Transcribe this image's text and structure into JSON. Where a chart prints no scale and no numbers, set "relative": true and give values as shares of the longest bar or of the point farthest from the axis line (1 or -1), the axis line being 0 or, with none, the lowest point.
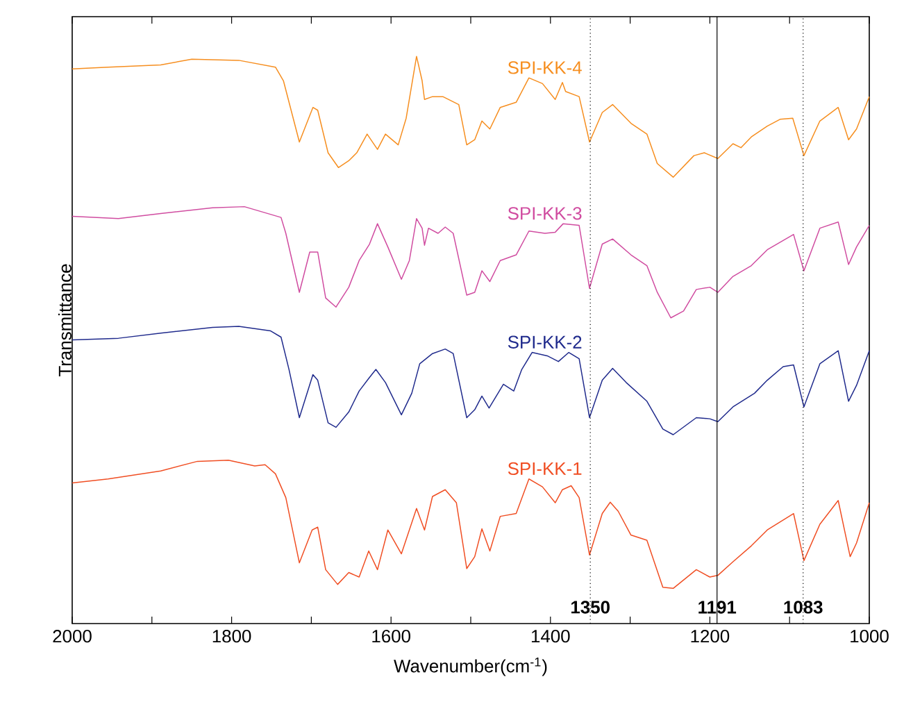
{
  "chart_data": {
    "type": "line",
    "relative": true,
    "xlabel": "Wavenumber(cm$^{-1}$)",
    "ylabel": "Transmittance",
    "tick_labels": "x",
    "xlim": [
      2000,
      1000
    ],
    "xticks": [
      2000,
      {
        "value": 1900,
        "label": null
      },
      1800,
      {
        "value": 1700,
        "label": null
      },
      1600,
      {
        "value": 1500,
        "label": null
      },
      1400,
      {
        "value": 1300,
        "label": null
      },
      1200,
      {
        "value": 1100,
        "label": null
      },
      1000
    ],
    "ref_lines": [
      {
        "axis": "x",
        "value": 1350,
        "label": "1350",
        "line_style": "dotted"
      },
      {
        "axis": "x",
        "value": 1191,
        "label": "1191",
        "line_style": "solid"
      },
      {
        "axis": "x",
        "value": 1083,
        "label": "1083",
        "line_style": "dotted"
      }
    ],
    "series": [
      {
        "name": "SPI-KK-4",
        "color": "#f68e1f",
        "x": [
          2000,
          1955,
          1889,
          1850,
          1791,
          1745,
          1735,
          1715,
          1698,
          1692,
          1679,
          1666,
          1653,
          1643,
          1630,
          1617,
          1607,
          1591,
          1581,
          1568,
          1561,
          1558,
          1548,
          1535,
          1515,
          1505,
          1495,
          1486,
          1476,
          1463,
          1443,
          1427,
          1410,
          1394,
          1385,
          1381,
          1364,
          1351,
          1335,
          1322,
          1299,
          1279,
          1266,
          1246,
          1220,
          1207,
          1190,
          1171,
          1161,
          1148,
          1128,
          1112,
          1096,
          1082,
          1062,
          1039,
          1026,
          1016,
          1000
        ],
        "values": [
          0.978,
          0.981,
          0.985,
          0.995,
          0.993,
          0.981,
          0.957,
          0.849,
          0.91,
          0.905,
          0.83,
          0.804,
          0.816,
          0.83,
          0.863,
          0.836,
          0.863,
          0.844,
          0.891,
          1.0,
          0.957,
          0.924,
          0.929,
          0.929,
          0.915,
          0.844,
          0.853,
          0.886,
          0.872,
          0.91,
          0.919,
          0.962,
          0.952,
          0.924,
          0.954,
          0.938,
          0.929,
          0.849,
          0.901,
          0.915,
          0.882,
          0.863,
          0.811,
          0.787,
          0.825,
          0.83,
          0.82,
          0.846,
          0.839,
          0.858,
          0.877,
          0.889,
          0.891,
          0.825,
          0.886,
          0.91,
          0.853,
          0.872,
          0.929
        ]
      },
      {
        "name": "SPI-KK-3",
        "color": "#d04ca0",
        "x": [
          2000,
          1942,
          1889,
          1824,
          1784,
          1738,
          1732,
          1715,
          1702,
          1692,
          1682,
          1669,
          1653,
          1640,
          1627,
          1617,
          1604,
          1587,
          1577,
          1568,
          1561,
          1558,
          1553,
          1541,
          1532,
          1522,
          1505,
          1495,
          1486,
          1476,
          1463,
          1443,
          1427,
          1407,
          1394,
          1384,
          1364,
          1351,
          1335,
          1322,
          1299,
          1279,
          1266,
          1249,
          1233,
          1217,
          1200,
          1190,
          1171,
          1148,
          1128,
          1095,
          1082,
          1062,
          1039,
          1026,
          1016,
          1000
        ],
        "values": [
          0.718,
          0.714,
          0.723,
          0.733,
          0.735,
          0.716,
          0.688,
          0.584,
          0.655,
          0.655,
          0.574,
          0.558,
          0.593,
          0.64,
          0.669,
          0.705,
          0.664,
          0.607,
          0.64,
          0.714,
          0.697,
          0.667,
          0.697,
          0.688,
          0.699,
          0.688,
          0.579,
          0.584,
          0.622,
          0.603,
          0.64,
          0.65,
          0.692,
          0.688,
          0.69,
          0.705,
          0.702,
          0.591,
          0.669,
          0.678,
          0.65,
          0.631,
          0.584,
          0.539,
          0.551,
          0.589,
          0.593,
          0.584,
          0.612,
          0.631,
          0.659,
          0.686,
          0.622,
          0.697,
          0.708,
          0.633,
          0.664,
          0.702
        ]
      },
      {
        "name": "SPI-KK-2",
        "color": "#1f2a8c",
        "x": [
          2000,
          1942,
          1889,
          1824,
          1791,
          1751,
          1738,
          1728,
          1715,
          1698,
          1692,
          1679,
          1669,
          1653,
          1640,
          1627,
          1619,
          1607,
          1587,
          1574,
          1564,
          1548,
          1532,
          1522,
          1505,
          1495,
          1486,
          1477,
          1459,
          1446,
          1436,
          1423,
          1404,
          1390,
          1377,
          1364,
          1351,
          1335,
          1322,
          1305,
          1279,
          1259,
          1246,
          1217,
          1200,
          1190,
          1171,
          1144,
          1128,
          1108,
          1095,
          1082,
          1062,
          1039,
          1026,
          1016,
          1000
        ],
        "values": [
          0.5,
          0.503,
          0.512,
          0.522,
          0.524,
          0.516,
          0.505,
          0.448,
          0.363,
          0.439,
          0.429,
          0.354,
          0.346,
          0.373,
          0.41,
          0.434,
          0.448,
          0.425,
          0.368,
          0.406,
          0.458,
          0.476,
          0.484,
          0.476,
          0.363,
          0.377,
          0.401,
          0.38,
          0.422,
          0.41,
          0.448,
          0.478,
          0.472,
          0.462,
          0.478,
          0.467,
          0.363,
          0.429,
          0.45,
          0.425,
          0.392,
          0.343,
          0.333,
          0.363,
          0.361,
          0.356,
          0.382,
          0.406,
          0.429,
          0.453,
          0.456,
          0.382,
          0.458,
          0.481,
          0.392,
          0.42,
          0.481
        ]
      },
      {
        "name": "SPI-KK-1",
        "color": "#f04e23",
        "x": [
          2000,
          1955,
          1889,
          1843,
          1804,
          1771,
          1758,
          1745,
          1732,
          1715,
          1699,
          1692,
          1682,
          1667,
          1653,
          1640,
          1628,
          1617,
          1604,
          1587,
          1568,
          1558,
          1548,
          1532,
          1518,
          1505,
          1495,
          1486,
          1476,
          1463,
          1443,
          1427,
          1410,
          1394,
          1385,
          1374,
          1364,
          1351,
          1335,
          1325,
          1315,
          1299,
          1279,
          1259,
          1246,
          1217,
          1200,
          1190,
          1171,
          1148,
          1128,
          1095,
          1082,
          1062,
          1039,
          1024,
          1016,
          1000
        ],
        "values": [
          0.248,
          0.255,
          0.269,
          0.286,
          0.288,
          0.278,
          0.28,
          0.264,
          0.222,
          0.107,
          0.165,
          0.17,
          0.095,
          0.069,
          0.09,
          0.082,
          0.128,
          0.095,
          0.165,
          0.123,
          0.203,
          0.165,
          0.224,
          0.236,
          0.213,
          0.097,
          0.118,
          0.167,
          0.128,
          0.189,
          0.194,
          0.255,
          0.241,
          0.213,
          0.236,
          0.243,
          0.222,
          0.121,
          0.194,
          0.214,
          0.198,
          0.156,
          0.147,
          0.064,
          0.062,
          0.095,
          0.082,
          0.085,
          0.109,
          0.137,
          0.165,
          0.194,
          0.111,
          0.175,
          0.217,
          0.118,
          0.142,
          0.213
        ]
      }
    ]
  }
}
